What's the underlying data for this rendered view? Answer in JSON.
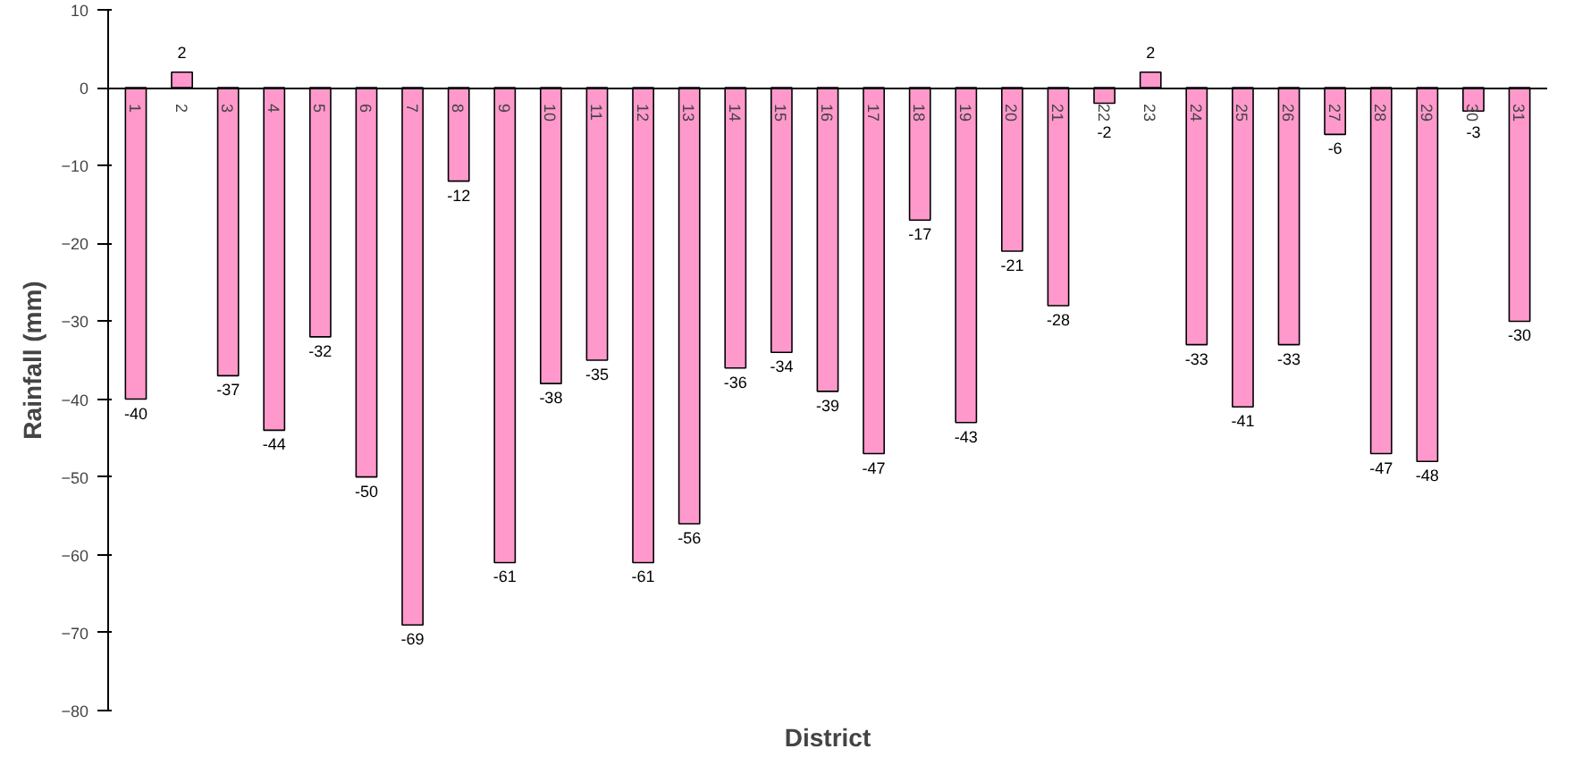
{
  "chart_data": {
    "type": "bar",
    "xlabel": "District",
    "ylabel": "Rainfall (mm)",
    "categories": [
      "1",
      "2",
      "3",
      "4",
      "5",
      "6",
      "7",
      "8",
      "9",
      "10",
      "11",
      "12",
      "13",
      "14",
      "15",
      "16",
      "17",
      "18",
      "19",
      "20",
      "21",
      "22",
      "23",
      "24",
      "25",
      "26",
      "27",
      "28",
      "29",
      "30",
      "31"
    ],
    "values": [
      -40,
      2,
      -37,
      -44,
      -32,
      -50,
      -69,
      -12,
      -61,
      -38,
      -35,
      -61,
      -56,
      -36,
      -34,
      -39,
      -47,
      -17,
      -43,
      -21,
      -28,
      -2,
      2,
      -33,
      -41,
      -33,
      -6,
      -47,
      -48,
      -3,
      -30
    ],
    "color": "#ff99cc",
    "ylim": [
      -80,
      10
    ],
    "yticks": [
      -80,
      -70,
      -60,
      -50,
      -40,
      -30,
      -20,
      -10,
      0,
      10
    ],
    "data_labels": true,
    "grid": false
  }
}
